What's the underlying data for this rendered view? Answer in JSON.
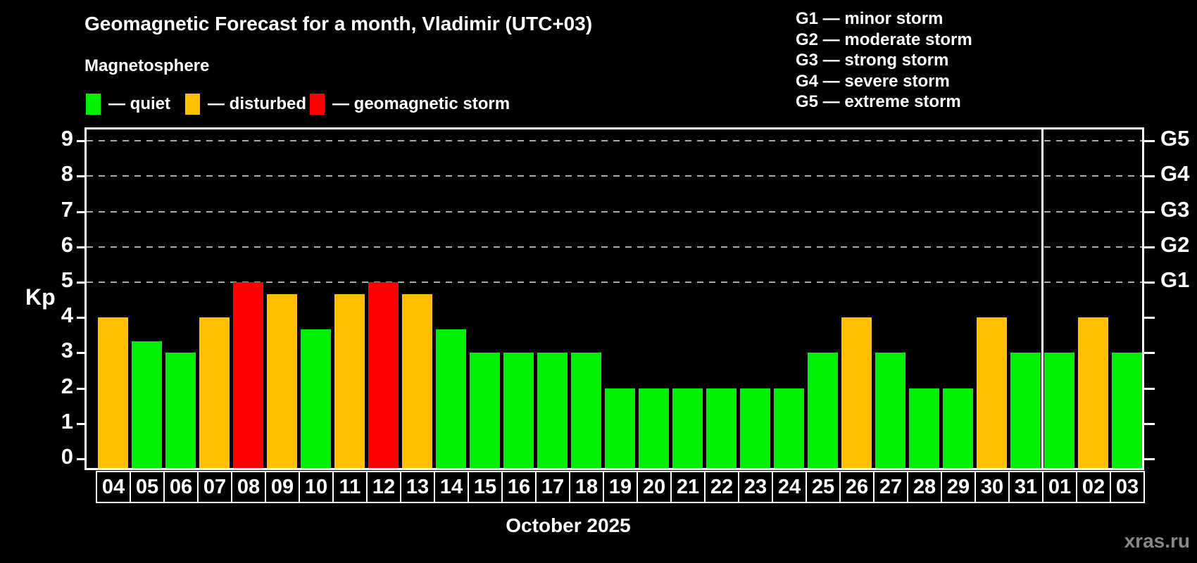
{
  "header": {
    "title": "Geomagnetic Forecast for a month, Vladimir (UTC+03)",
    "subtitle": "Magnetosphere"
  },
  "status_legend": [
    {
      "key": "quiet",
      "label": "— quiet",
      "color": "#00ee00"
    },
    {
      "key": "disturbed",
      "label": "— disturbed",
      "color": "#ffc000"
    },
    {
      "key": "storm",
      "label": "— geomagnetic storm",
      "color": "#ff0000"
    }
  ],
  "g_scale_legend": [
    "G1 — minor storm",
    "G2 — moderate storm",
    "G3 — strong storm",
    "G4 — severe storm",
    "G5 — extreme storm"
  ],
  "watermark": "xras.ru",
  "chart_data": {
    "type": "bar",
    "title": "Geomagnetic Forecast for a month, Vladimir (UTC+03)",
    "xlabel": "October 2025",
    "ylabel": "Kp",
    "ylim": [
      -0.26,
      9.4
    ],
    "yticks": [
      0,
      1,
      2,
      3,
      4,
      5,
      6,
      7,
      8,
      9
    ],
    "gridlines_at": [
      5,
      6,
      7,
      8,
      9
    ],
    "right_axis_labels": {
      "5": "G1",
      "6": "G2",
      "7": "G3",
      "8": "G4",
      "9": "G5"
    },
    "legend_position": "top",
    "grid": "dashed horizontal at storm levels only",
    "categories": [
      "04",
      "05",
      "06",
      "07",
      "08",
      "09",
      "10",
      "11",
      "12",
      "13",
      "14",
      "15",
      "16",
      "17",
      "18",
      "19",
      "20",
      "21",
      "22",
      "23",
      "24",
      "25",
      "26",
      "27",
      "28",
      "29",
      "30",
      "31",
      "01",
      "02",
      "03"
    ],
    "values": [
      4,
      3.33,
      3,
      4,
      5,
      4.67,
      3.67,
      4.67,
      5,
      4.67,
      3.67,
      3,
      3,
      3,
      3,
      2,
      2,
      2,
      2,
      2,
      2,
      3,
      4,
      3,
      2,
      2,
      4,
      3,
      3,
      4,
      3
    ],
    "statuses": [
      "disturbed",
      "quiet",
      "quiet",
      "disturbed",
      "storm",
      "disturbed",
      "quiet",
      "disturbed",
      "storm",
      "disturbed",
      "quiet",
      "quiet",
      "quiet",
      "quiet",
      "quiet",
      "quiet",
      "quiet",
      "quiet",
      "quiet",
      "quiet",
      "quiet",
      "quiet",
      "disturbed",
      "quiet",
      "quiet",
      "quiet",
      "disturbed",
      "quiet",
      "quiet",
      "disturbed",
      "quiet"
    ],
    "colors": {
      "quiet": "#00ee00",
      "disturbed": "#ffc000",
      "storm": "#ff0000"
    },
    "month_divider_after_category": "31"
  }
}
